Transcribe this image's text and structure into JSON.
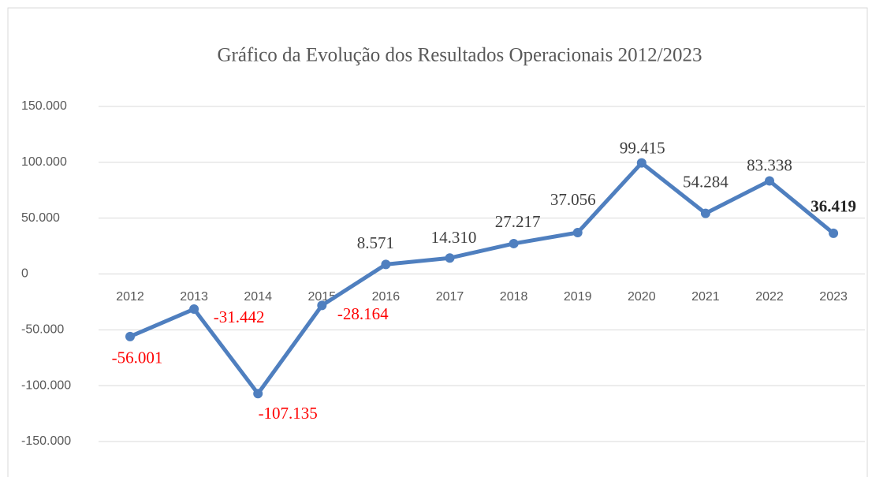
{
  "chart_data": {
    "type": "line",
    "title": "Gráfico da Evolução dos Resultados Operacionais 2012/2023",
    "categories": [
      "2012",
      "2013",
      "2014",
      "2015",
      "2016",
      "2017",
      "2018",
      "2019",
      "2020",
      "2021",
      "2022",
      "2023"
    ],
    "series": [
      {
        "color": "#4f7fbf",
        "values": [
          -56001,
          -31442,
          -107135,
          -28164,
          8571,
          14310,
          27217,
          37056,
          99415,
          54284,
          83338,
          36419
        ],
        "value_labels": [
          "-56.001",
          "-31.442",
          "-107.135",
          "-28.164",
          "8.571",
          "14.310",
          "27.217",
          "37.056",
          "99.415",
          "54.284",
          "83.338",
          "36.419"
        ],
        "label_colors": [
          "#ff0000",
          "#ff0000",
          "#ff0000",
          "#ff0000",
          "#404040",
          "#404040",
          "#404040",
          "#404040",
          "#404040",
          "#404040",
          "#404040",
          "#262626"
        ],
        "label_bold": [
          false,
          false,
          false,
          false,
          false,
          false,
          false,
          false,
          false,
          false,
          false,
          true
        ]
      }
    ],
    "ylim": [
      -150000,
      150000
    ],
    "yticks": [
      {
        "value": -150000,
        "label": "-150.000"
      },
      {
        "value": -100000,
        "label": "-100.000"
      },
      {
        "value": -50000,
        "label": "-50.000"
      },
      0,
      {
        "value": 50000,
        "label": "50.000"
      },
      {
        "value": 100000,
        "label": "100.000"
      },
      {
        "value": 150000,
        "label": "150.000"
      }
    ],
    "grid": true
  }
}
